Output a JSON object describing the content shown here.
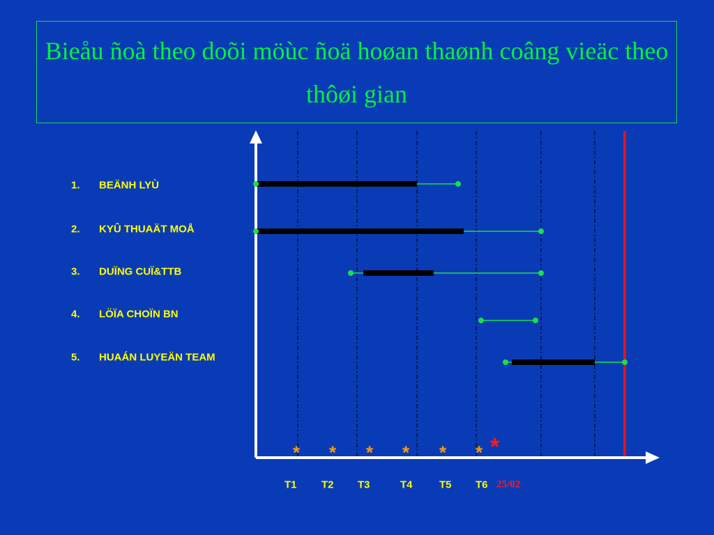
{
  "header": {
    "title": "Bieåu ñoà theo doõi möùc ñoä hoøan thaønh coâng vieäc theo thôøi gian"
  },
  "tasks": [
    {
      "number": "1.",
      "label": "BEÄNH LYÙ"
    },
    {
      "number": "2.",
      "label": "KYÛ THUAÄT MOÅ"
    },
    {
      "number": "3.",
      "label": "DUÏNG CUÏ&TTB"
    },
    {
      "number": "4.",
      "label": "LÖÏA CHOÏN BN"
    },
    {
      "number": "5.",
      "label": "HUAÁN LUYEÄN TEAM"
    }
  ],
  "markers": [
    "*",
    "*",
    "*",
    "*",
    "*",
    "*",
    "*"
  ],
  "timeline": [
    "T1",
    "T2",
    "T3",
    "T4",
    "T5",
    "T6",
    "25/02"
  ]
}
